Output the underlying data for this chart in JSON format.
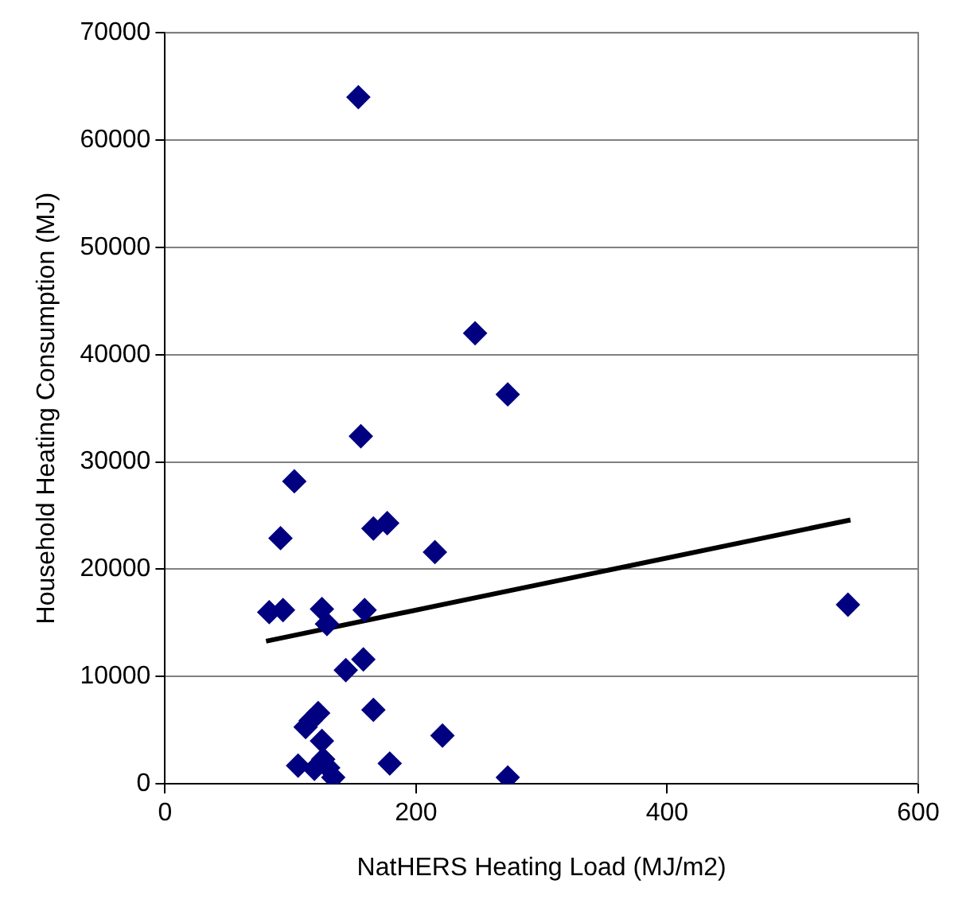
{
  "chart_data": {
    "type": "scatter",
    "xlabel": "NatHERS Heating Load (MJ/m2)",
    "ylabel": "Household Heating Consumption (MJ)",
    "xlim": [
      0,
      600
    ],
    "xticks": [
      0,
      200,
      400,
      600
    ],
    "ylim": [
      0,
      70000
    ],
    "yticks": [
      0,
      10000,
      20000,
      30000,
      40000,
      50000,
      60000,
      70000
    ],
    "grid": "y",
    "marker": "diamond",
    "legend": false,
    "series": [
      {
        "color": "#000080",
        "x": [
          154,
          247,
          273,
          156,
          103,
          92,
          166,
          177,
          215,
          83,
          94,
          125,
          129,
          159,
          544,
          158,
          144,
          166,
          122,
          116,
          112,
          125,
          221,
          106,
          119,
          126,
          130,
          134,
          179,
          273
        ],
        "values": [
          64000,
          42000,
          36300,
          32400,
          28200,
          22900,
          23800,
          24300,
          21600,
          16000,
          16200,
          16300,
          14900,
          16200,
          16700,
          11600,
          10600,
          6900,
          6600,
          5900,
          5300,
          4000,
          4500,
          1700,
          1400,
          2300,
          1500,
          600,
          1900,
          600
        ]
      },
      {
        "type": "line",
        "color": "#000000",
        "marker": "none",
        "x": [
          80.5,
          546
        ],
        "values": [
          13300,
          24600
        ]
      }
    ]
  }
}
